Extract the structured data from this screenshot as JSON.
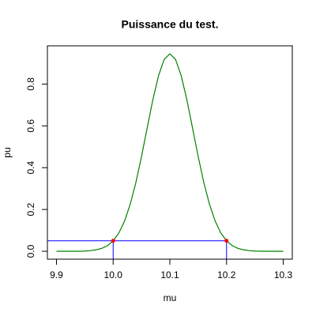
{
  "chart_data": {
    "type": "line",
    "title": "Puissance du test.",
    "xlabel": "mu",
    "ylabel": "pu",
    "x": [
      9.9,
      9.91,
      9.92,
      9.93,
      9.94,
      9.95,
      9.96,
      9.97,
      9.98,
      9.99,
      10.0,
      10.01,
      10.02,
      10.03,
      10.04,
      10.05,
      10.06,
      10.07,
      10.08,
      10.09,
      10.1,
      10.11,
      10.12,
      10.13,
      10.14,
      10.15,
      10.16,
      10.17,
      10.18,
      10.19,
      10.2,
      10.21,
      10.22,
      10.23,
      10.24,
      10.25,
      10.26,
      10.27,
      10.28,
      10.29,
      10.3
    ],
    "series": [
      {
        "color": "#008000",
        "values": [
          0,
          0,
          0,
          0,
          0,
          0.001,
          0.003,
          0.007,
          0.014,
          0.027,
          0.05,
          0.087,
          0.144,
          0.224,
          0.328,
          0.453,
          0.59,
          0.725,
          0.84,
          0.918,
          0.945,
          0.918,
          0.84,
          0.725,
          0.59,
          0.453,
          0.328,
          0.224,
          0.144,
          0.087,
          0.05,
          0.027,
          0.014,
          0.007,
          0.003,
          0.001,
          0,
          0,
          0,
          0,
          0
        ]
      }
    ],
    "reference": {
      "y": 0.05,
      "x": [
        10.0,
        10.2
      ],
      "line_color": "#0000ff",
      "point_color": "#ff0000"
    },
    "xlim": [
      9.884,
      10.316
    ],
    "ylim": [
      -0.0378,
      0.983
    ],
    "xticks": [
      9.9,
      {
        "value": 10.0,
        "label": "10.0"
      },
      10.1,
      {
        "value": 10.2,
        "label": "10.2"
      },
      10.3
    ],
    "yticks": [
      {
        "value": 0,
        "label": "0.0"
      },
      0.2,
      0.4,
      0.6,
      0.8
    ]
  }
}
